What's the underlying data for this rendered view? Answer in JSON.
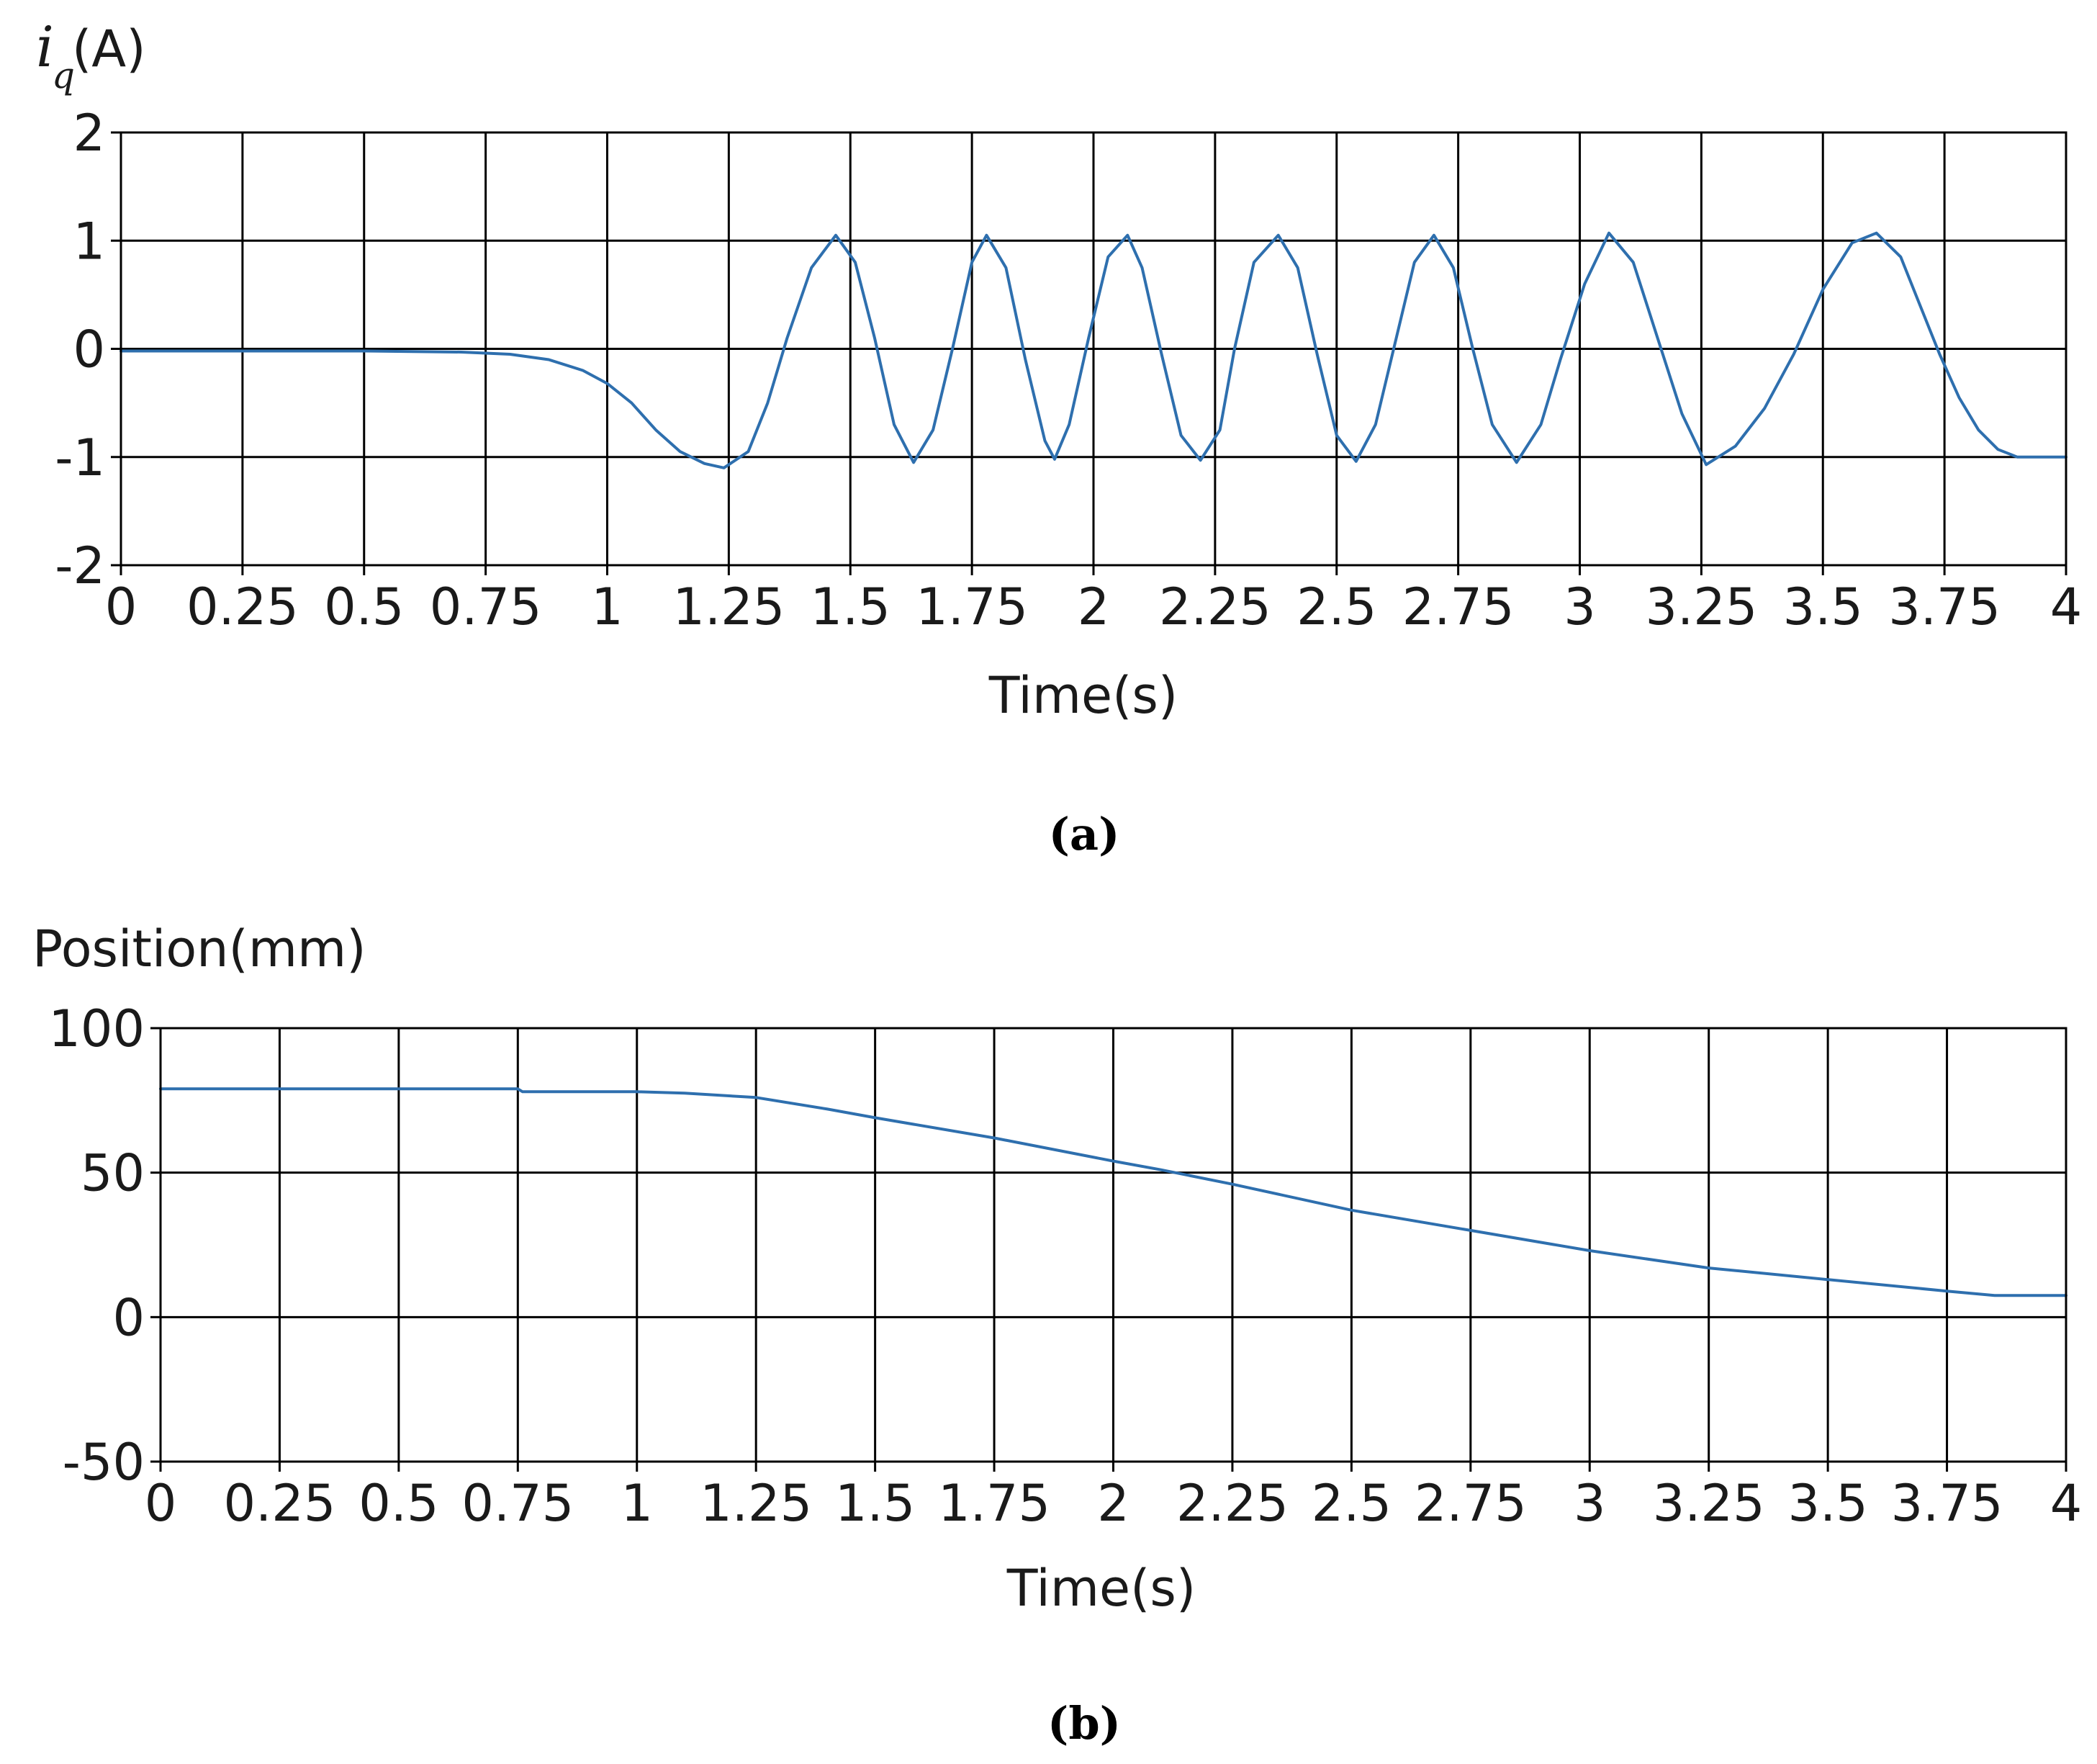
{
  "figure": {
    "panel_labels": [
      "(a)",
      "(b)"
    ]
  },
  "chart_data": [
    {
      "type": "line",
      "panel": "(a)",
      "title": "",
      "ylabel_main": "i",
      "ylabel_sub": "q",
      "ylabel_unit": "(A)",
      "xlabel": "Time(s)",
      "xlim": [
        0,
        4
      ],
      "ylim": [
        -2,
        2
      ],
      "x_ticks": [
        0,
        0.25,
        0.5,
        0.75,
        1,
        1.25,
        1.5,
        1.75,
        2,
        2.25,
        2.5,
        2.75,
        3,
        3.25,
        3.5,
        3.75,
        4
      ],
      "x_tick_labels": [
        "0",
        "0.25",
        "0.5",
        "0.75",
        "1",
        "1.25",
        "1.5",
        "1.75",
        "2",
        "2.25",
        "2.5",
        "2.75",
        "3",
        "3.25",
        "3.5",
        "3.75",
        "4"
      ],
      "y_ticks": [
        2,
        1,
        0,
        -1,
        -2
      ],
      "y_tick_labels": [
        "2",
        "1",
        "0",
        "-1",
        "-2"
      ],
      "grid": true,
      "color": "#2e6fae",
      "series": [
        {
          "x": [
            0,
            0.5,
            0.7,
            0.8,
            0.88,
            0.95,
            1.0,
            1.05,
            1.1,
            1.15,
            1.2,
            1.24,
            1.29,
            1.33,
            1.37,
            1.42,
            1.47,
            1.51,
            1.55,
            1.59,
            1.63,
            1.67,
            1.71,
            1.75,
            1.78,
            1.82,
            1.86,
            1.9,
            1.92,
            1.95,
            1.99,
            2.03,
            2.07,
            2.1,
            2.14,
            2.18,
            2.22,
            2.26,
            2.29,
            2.33,
            2.38,
            2.42,
            2.46,
            2.5,
            2.54,
            2.58,
            2.62,
            2.66,
            2.7,
            2.74,
            2.78,
            2.82,
            2.87,
            2.92,
            2.96,
            3.01,
            3.06,
            3.11,
            3.16,
            3.21,
            3.26,
            3.32,
            3.38,
            3.44,
            3.5,
            3.56,
            3.61,
            3.66,
            3.7,
            3.74,
            3.78,
            3.82,
            3.86,
            3.9,
            3.95,
            4.0
          ],
          "y": [
            -0.02,
            -0.02,
            -0.03,
            -0.05,
            -0.1,
            -0.2,
            -0.32,
            -0.5,
            -0.75,
            -0.95,
            -1.06,
            -1.1,
            -0.95,
            -0.5,
            0.1,
            0.75,
            1.05,
            0.8,
            0.1,
            -0.7,
            -1.05,
            -0.75,
            0.0,
            0.8,
            1.05,
            0.75,
            -0.1,
            -0.85,
            -1.02,
            -0.7,
            0.1,
            0.85,
            1.05,
            0.75,
            -0.05,
            -0.8,
            -1.03,
            -0.75,
            0.0,
            0.8,
            1.05,
            0.75,
            -0.05,
            -0.8,
            -1.04,
            -0.7,
            0.05,
            0.8,
            1.05,
            0.75,
            0.0,
            -0.7,
            -1.05,
            -0.7,
            -0.1,
            0.6,
            1.07,
            0.8,
            0.1,
            -0.6,
            -1.07,
            -0.9,
            -0.55,
            -0.05,
            0.55,
            0.98,
            1.07,
            0.85,
            0.4,
            -0.05,
            -0.45,
            -0.75,
            -0.93,
            -1.0,
            -1.0,
            -1.0
          ]
        }
      ]
    },
    {
      "type": "line",
      "panel": "(b)",
      "title": "",
      "ylabel": "Position(mm)",
      "xlabel": "Time(s)",
      "xlim": [
        0,
        4
      ],
      "ylim": [
        -50,
        100
      ],
      "x_ticks": [
        0,
        0.25,
        0.5,
        0.75,
        1,
        1.25,
        1.5,
        1.75,
        2,
        2.25,
        2.5,
        2.75,
        3,
        3.25,
        3.5,
        3.75,
        4
      ],
      "x_tick_labels": [
        "0",
        "0.25",
        "0.5",
        "0.75",
        "1",
        "1.25",
        "1.5",
        "1.75",
        "2",
        "2.25",
        "2.5",
        "2.75",
        "3",
        "3.25",
        "3.5",
        "3.75",
        "4"
      ],
      "y_ticks": [
        100,
        50,
        0,
        -50
      ],
      "y_tick_labels": [
        "100",
        "50",
        "0",
        "-50"
      ],
      "grid": true,
      "color": "#2e6fae",
      "series": [
        {
          "x": [
            0,
            0.75,
            0.76,
            1.0,
            1.1,
            1.25,
            1.4,
            1.5,
            1.75,
            2.0,
            2.1,
            2.25,
            2.5,
            2.75,
            3.0,
            3.25,
            3.5,
            3.75,
            3.85,
            4.0
          ],
          "y": [
            79,
            79,
            78,
            78,
            77.5,
            76,
            72,
            69,
            62,
            54,
            51,
            46,
            37,
            30,
            23,
            17,
            13,
            9,
            7.5,
            7.5
          ]
        }
      ]
    }
  ]
}
